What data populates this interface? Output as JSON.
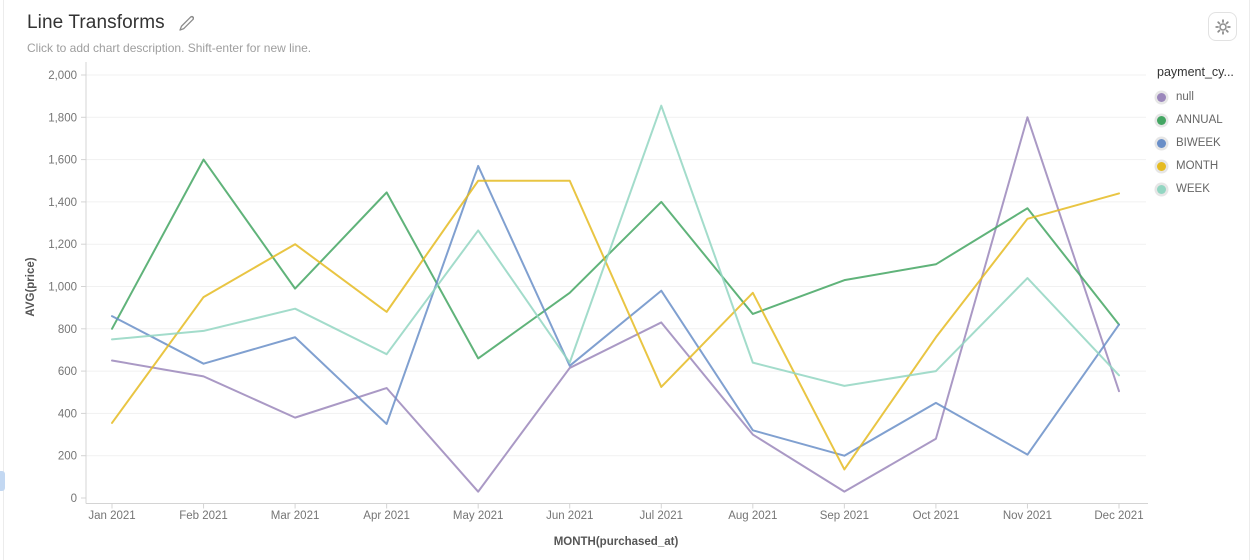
{
  "header": {
    "title": "Line Transforms",
    "subtitle": "Click to add chart description. Shift-enter for new line."
  },
  "legend": {
    "title": "payment_cy..."
  },
  "chart_data": {
    "type": "line",
    "title": "Line Transforms",
    "xlabel": "MONTH(purchased_at)",
    "ylabel": "AVG(price)",
    "ylim": [
      0,
      2000
    ],
    "ytick_step": 200,
    "grid": true,
    "legend_position": "right",
    "legend_title": "payment_cy...",
    "categories": [
      "Jan 2021",
      "Feb 2021",
      "Mar 2021",
      "Apr 2021",
      "May 2021",
      "Jun 2021",
      "Jul 2021",
      "Aug 2021",
      "Sep 2021",
      "Oct 2021",
      "Nov 2021",
      "Dec 2021"
    ],
    "series": [
      {
        "name": "null",
        "color": "#9b87bb",
        "values": [
          650,
          575,
          380,
          520,
          30,
          615,
          830,
          300,
          30,
          280,
          1800,
          505
        ]
      },
      {
        "name": "ANNUAL",
        "color": "#44a663",
        "values": [
          800,
          1600,
          990,
          1445,
          660,
          970,
          1400,
          870,
          1030,
          1105,
          1370,
          820
        ]
      },
      {
        "name": "BIWEEK",
        "color": "#6a8fc8",
        "values": [
          860,
          635,
          760,
          350,
          1570,
          625,
          980,
          320,
          200,
          450,
          205,
          820
        ]
      },
      {
        "name": "MONTH",
        "color": "#e5bb22",
        "values": [
          355,
          950,
          1200,
          880,
          1500,
          1500,
          525,
          970,
          135,
          760,
          1320,
          1440
        ]
      },
      {
        "name": "WEEK",
        "color": "#93d6c2",
        "values": [
          750,
          790,
          895,
          680,
          1265,
          640,
          1855,
          640,
          530,
          600,
          1040,
          580
        ]
      }
    ],
    "colors": {
      "grid": "#f1f1f1",
      "axis": "#d4d4d4",
      "tick_label": "#757575",
      "axis_name": "#565656"
    }
  }
}
